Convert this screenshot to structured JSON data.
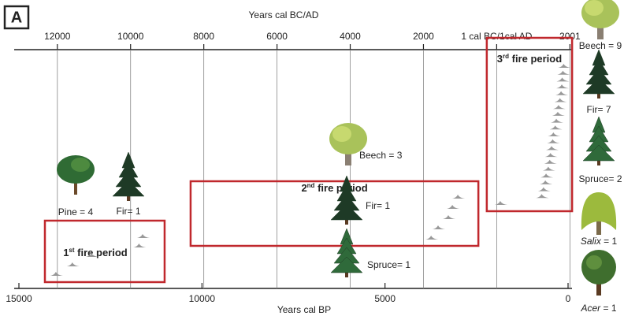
{
  "chart_data": {
    "type": "timeline",
    "panel": "A",
    "xlabel": "Years cal BP",
    "x2label": "Years cal BC/AD",
    "xlim": [
      15000,
      0
    ],
    "xticks": [
      15000,
      10000,
      5000,
      0
    ],
    "x2lim": [
      -13050,
      1950
    ],
    "x2ticks": [
      {
        "value": -12000,
        "label": "12000"
      },
      {
        "value": -10000,
        "label": "10000"
      },
      {
        "value": -8000,
        "label": "8000"
      },
      {
        "value": -6000,
        "label": "6000"
      },
      {
        "value": -4000,
        "label": "4000"
      },
      {
        "value": -2000,
        "label": "2000"
      },
      {
        "value": 0,
        "label": "1 cal BC/1cal AD"
      },
      2001
    ],
    "grid": true,
    "series": [
      {
        "ordinal": "1",
        "suffix": "st",
        "name": " fire period",
        "color": "#999999",
        "start": 14290,
        "end": 11020,
        "values": [
          13970,
          13520,
          13000,
          11700,
          11600
        ]
      },
      {
        "ordinal": "2",
        "suffix": "nd",
        "name": " fire period",
        "color": "#999999",
        "start": 10310,
        "end": 2450,
        "values": [
          3720,
          3530,
          3250,
          3140,
          2990
        ]
      },
      {
        "ordinal": "3",
        "suffix": "rd",
        "name": " fire period",
        "color": "#999999",
        "start": 2220,
        "end": -110,
        "values": [
          1830,
          700,
          650,
          600,
          580,
          520,
          480,
          460,
          430,
          400,
          380,
          330,
          300,
          260,
          240,
          200,
          170,
          150,
          140,
          120,
          100
        ]
      }
    ],
    "trees": [
      {
        "name": "Pine",
        "suffix": " = 4",
        "kind": "pine"
      },
      {
        "name": "Fir",
        "suffix": "= 1",
        "kind": "fir"
      },
      {
        "name": "Beech",
        "suffix": " = 3",
        "kind": "beech"
      },
      {
        "name": "Fir",
        "suffix": "= 1",
        "kind": "fir"
      },
      {
        "name": "Spruce",
        "suffix": "= 1",
        "kind": "spruce"
      },
      {
        "name": "Beech",
        "suffix": " = 9",
        "kind": "beech"
      },
      {
        "name": "Fir",
        "suffix": "= 7",
        "kind": "fir"
      },
      {
        "name": "Spruce",
        "suffix": "= 2",
        "kind": "spruce"
      },
      {
        "name": "Salix",
        "suffix": " = 1",
        "kind": "salix",
        "italic": true
      },
      {
        "name": "Acer",
        "suffix": " = 1",
        "kind": "acer",
        "italic": true
      }
    ]
  }
}
